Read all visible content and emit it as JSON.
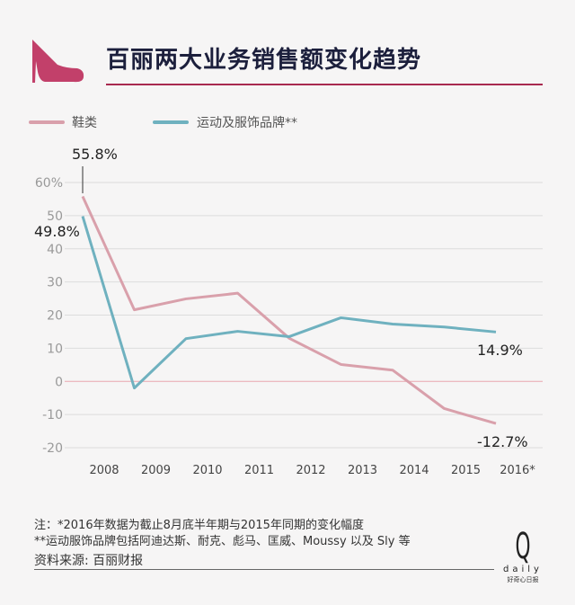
{
  "header": {
    "title": "百丽两大业务销售额变化趋势",
    "icon": "high-heel-shoe-icon"
  },
  "colors": {
    "shoes": "#d9a0ab",
    "sports": "#6fb1bf",
    "accent": "#a8294f",
    "icon": "#c2406a",
    "title": "#1c1f3c"
  },
  "chart_data": {
    "type": "line",
    "title": "百丽两大业务销售额变化趋势",
    "xlabel": "",
    "ylabel": "",
    "categories": [
      "2008",
      "2009",
      "2010",
      "2011",
      "2012",
      "2013",
      "2014",
      "2015",
      "2016*"
    ],
    "ylim": [
      -20,
      60
    ],
    "yticks": [
      60,
      50,
      40,
      30,
      20,
      10,
      0,
      -10,
      -20
    ],
    "ytick_labels": [
      "60%",
      "50",
      "40",
      "30",
      "20",
      "10",
      "0",
      "-10",
      "-20"
    ],
    "grid": true,
    "legend_position": "top-left",
    "series": [
      {
        "name": "鞋类",
        "color": "#d9a0ab",
        "values": [
          55.8,
          21.6,
          24.9,
          26.6,
          13,
          5.1,
          3.4,
          -8.2,
          -12.7
        ]
      },
      {
        "name": "运动及服饰品牌**",
        "color": "#6fb1bf",
        "values": [
          49.8,
          -2.0,
          12.9,
          15.1,
          13.5,
          19.2,
          17.3,
          16.4,
          14.9
        ]
      }
    ],
    "annotations": [
      "55.8%",
      "49.8%",
      "14.9%",
      "-12.7%"
    ]
  },
  "notes": {
    "line1": "注：*2016年数据为截止8月底半年期与2015年同期的变化幅度",
    "line2": "**运动服饰品牌包括阿迪达斯、耐克、彪马、匡威、Moussy 以及 Sly 等",
    "source": "资料来源: 百丽财报"
  },
  "logo": {
    "letter": "Q",
    "word": "daily",
    "tagline": "好奇心日报"
  }
}
